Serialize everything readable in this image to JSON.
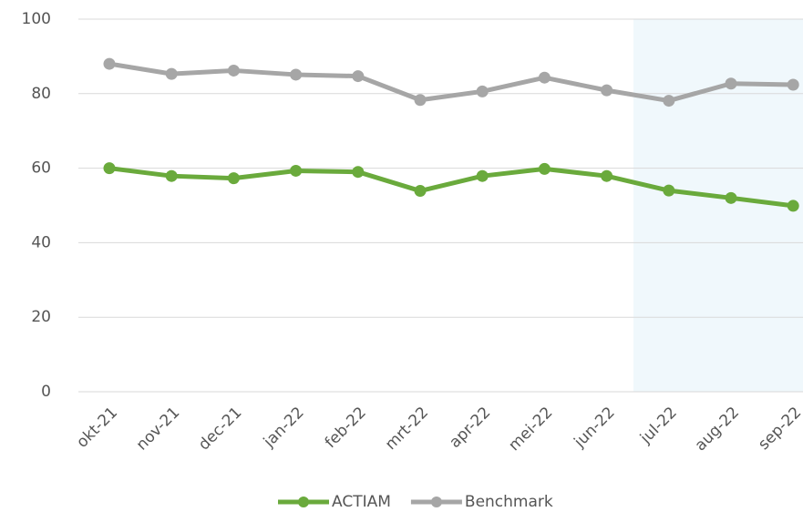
{
  "chart_data": {
    "type": "line",
    "categories": [
      "okt-21",
      "nov-21",
      "dec-21",
      "jan-22",
      "feb-22",
      "mrt-22",
      "apr-22",
      "mei-22",
      "jun-22",
      "jul-22",
      "aug-22",
      "sep-22"
    ],
    "series": [
      {
        "name": "ACTIAM",
        "color": "#6aaa3c",
        "values": [
          60,
          57.9,
          57.3,
          59.3,
          59,
          53.9,
          57.9,
          59.8,
          57.9,
          54,
          52,
          49.9
        ]
      },
      {
        "name": "Benchmark",
        "color": "#a6a6a6",
        "values": [
          88,
          85.3,
          86.2,
          85.1,
          84.7,
          78.3,
          80.6,
          84.3,
          80.9,
          78.1,
          82.7,
          82.4
        ]
      }
    ],
    "ylim": [
      0,
      100
    ],
    "yticks": [
      0,
      20,
      40,
      60,
      80,
      100
    ],
    "grid": true,
    "legend": "bottom"
  }
}
